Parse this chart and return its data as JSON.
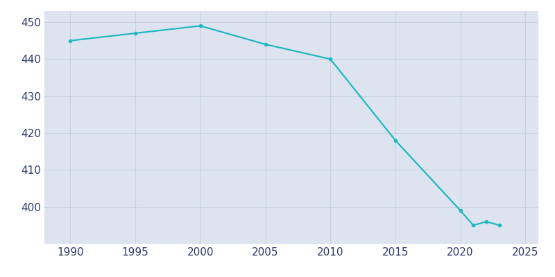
{
  "years": [
    1990,
    1995,
    2000,
    2005,
    2010,
    2015,
    2020,
    2021,
    2022,
    2023
  ],
  "population": [
    445,
    447,
    449,
    444,
    440,
    418,
    399,
    395,
    396,
    395
  ],
  "line_color": "#20B8C0",
  "bg_color": "#FFFFFF",
  "plot_bg_color": "#DDE4EF",
  "tick_color": "#2D3A6B",
  "grid_color": "#C8D2E4",
  "xlim": [
    1988,
    2026
  ],
  "ylim": [
    390,
    453
  ],
  "yticks": [
    400,
    410,
    420,
    430,
    440,
    450
  ],
  "xticks": [
    1990,
    1995,
    2000,
    2005,
    2010,
    2015,
    2020,
    2025
  ]
}
